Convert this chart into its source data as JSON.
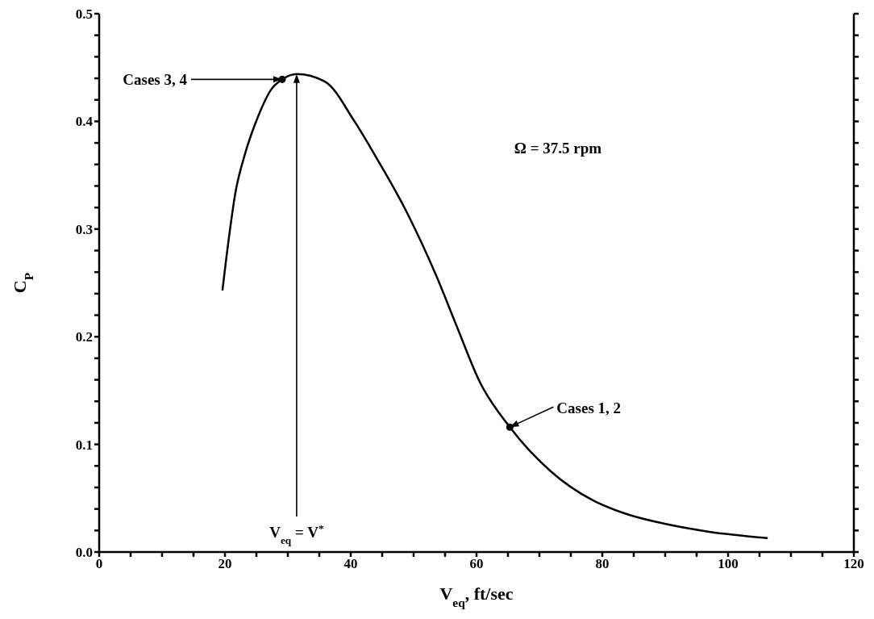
{
  "chart_data": {
    "type": "line",
    "xlabel": "V$_{eq}$, ft/sec",
    "ylabel": "C$_{P}$",
    "series": [
      {
        "color": "#000000",
        "marker": "none",
        "x": [
          19.6,
          21.8,
          23.1,
          25.3,
          27.4,
          29.1,
          31.4,
          35.9,
          40.6,
          44.5,
          48.7,
          51.2,
          53.5,
          56.7,
          60.6,
          65.3,
          71.8,
          78.5,
          84.0,
          90.1,
          96.8,
          106.3
        ],
        "values": [
          0.243,
          0.338,
          0.368,
          0.405,
          0.43,
          0.439,
          0.444,
          0.437,
          0.4,
          0.362,
          0.318,
          0.288,
          0.258,
          0.212,
          0.157,
          0.116,
          0.075,
          0.048,
          0.035,
          0.026,
          0.019,
          0.013
        ]
      },
      {
        "type": "scatter",
        "color": "#000000",
        "marker": "circle",
        "x": [
          29.1,
          65.3
        ],
        "values": [
          0.439,
          0.116
        ]
      }
    ],
    "xlim": [
      0,
      120
    ],
    "xticks": [
      0,
      {
        "value": 5,
        "label": null
      },
      {
        "value": 10,
        "label": null
      },
      {
        "value": 15,
        "label": null
      },
      20,
      {
        "value": 25,
        "label": null
      },
      {
        "value": 30,
        "label": null
      },
      {
        "value": 35,
        "label": null
      },
      40,
      {
        "value": 45,
        "label": null
      },
      {
        "value": 50,
        "label": null
      },
      {
        "value": 55,
        "label": null
      },
      60,
      {
        "value": 65,
        "label": null
      },
      {
        "value": 70,
        "label": null
      },
      {
        "value": 75,
        "label": null
      },
      80,
      {
        "value": 85,
        "label": null
      },
      {
        "value": 90,
        "label": null
      },
      {
        "value": 95,
        "label": null
      },
      100,
      {
        "value": 105,
        "label": null
      },
      {
        "value": 110,
        "label": null
      },
      {
        "value": 115,
        "label": null
      },
      120
    ],
    "ylim": [
      0,
      0.5
    ],
    "yticks": [
      {
        "value": 0,
        "label": "0.0"
      },
      {
        "value": 0.02,
        "label": null
      },
      {
        "value": 0.04,
        "label": null
      },
      {
        "value": 0.06,
        "label": null
      },
      {
        "value": 0.08,
        "label": null
      },
      0.1,
      {
        "value": 0.12,
        "label": null
      },
      {
        "value": 0.14,
        "label": null
      },
      {
        "value": 0.16,
        "label": null
      },
      {
        "value": 0.18,
        "label": null
      },
      0.2,
      {
        "value": 0.22,
        "label": null
      },
      {
        "value": 0.24,
        "label": null
      },
      {
        "value": 0.26,
        "label": null
      },
      {
        "value": 0.28,
        "label": null
      },
      0.3,
      {
        "value": 0.32,
        "label": null
      },
      {
        "value": 0.34,
        "label": null
      },
      {
        "value": 0.36,
        "label": null
      },
      {
        "value": 0.38,
        "label": null
      },
      0.4,
      {
        "value": 0.42,
        "label": null
      },
      {
        "value": 0.44,
        "label": null
      },
      {
        "value": 0.46,
        "label": null
      },
      {
        "value": 0.48,
        "label": null
      },
      0.5
    ],
    "grid": false,
    "legend": false,
    "annotations": [
      "Cases 3, 4",
      "Cases 1, 2",
      "V$_{eq}$ = V$^{*}$",
      "Ω = 37.5 rpm"
    ]
  }
}
